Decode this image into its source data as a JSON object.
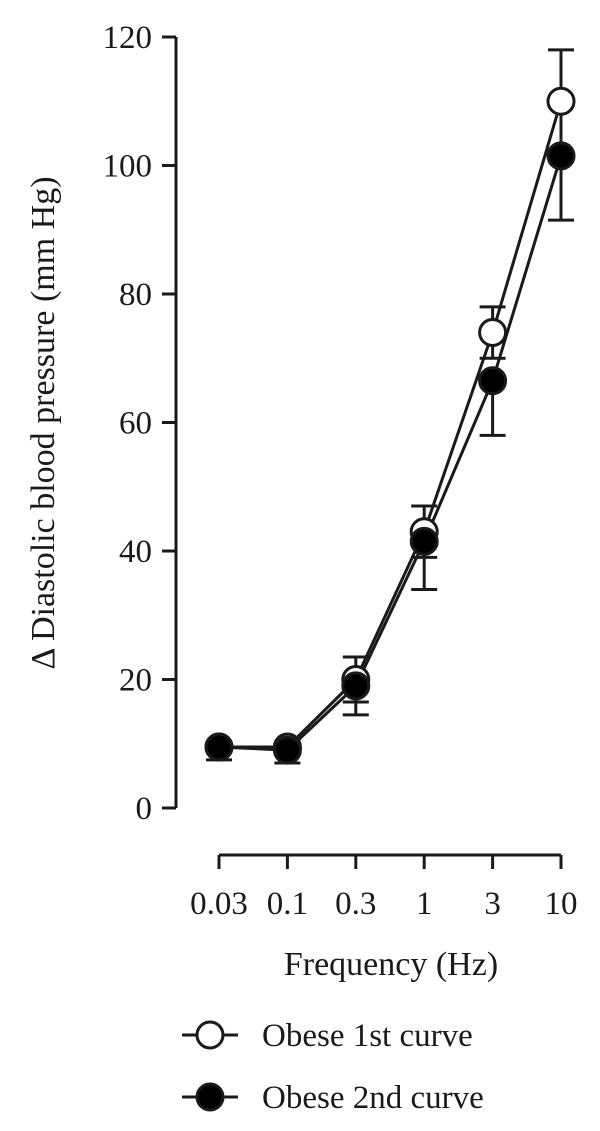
{
  "chart_data": {
    "type": "line",
    "title": "",
    "xlabel": "Frequency (Hz)",
    "ylabel": "Δ Diastolic blood pressure (mm Hg)",
    "categories": [
      "0.03",
      "0.1",
      "0.3",
      "1",
      "3",
      "10"
    ],
    "ylim": [
      0,
      120
    ],
    "yticks": [
      "0",
      "20",
      "40",
      "60",
      "80",
      "100",
      "120"
    ],
    "grid": false,
    "legend_position": "bottom",
    "series": [
      {
        "name": "Obese 1st curve",
        "marker": "open-circle",
        "values": [
          9.5,
          9.5,
          20,
          43,
          74,
          110
        ],
        "err_low": [
          0,
          0,
          3.5,
          4,
          4,
          8
        ],
        "err_high": [
          0,
          0,
          3.5,
          4,
          4,
          8
        ]
      },
      {
        "name": "Obese 2nd curve",
        "marker": "filled-circle",
        "values": [
          9.5,
          9,
          19,
          41.5,
          66.5,
          101.5
        ],
        "err_low": [
          2,
          2,
          4.5,
          7.5,
          8.5,
          10
        ],
        "err_high": [
          0,
          0,
          0,
          0,
          0,
          0
        ]
      }
    ]
  }
}
